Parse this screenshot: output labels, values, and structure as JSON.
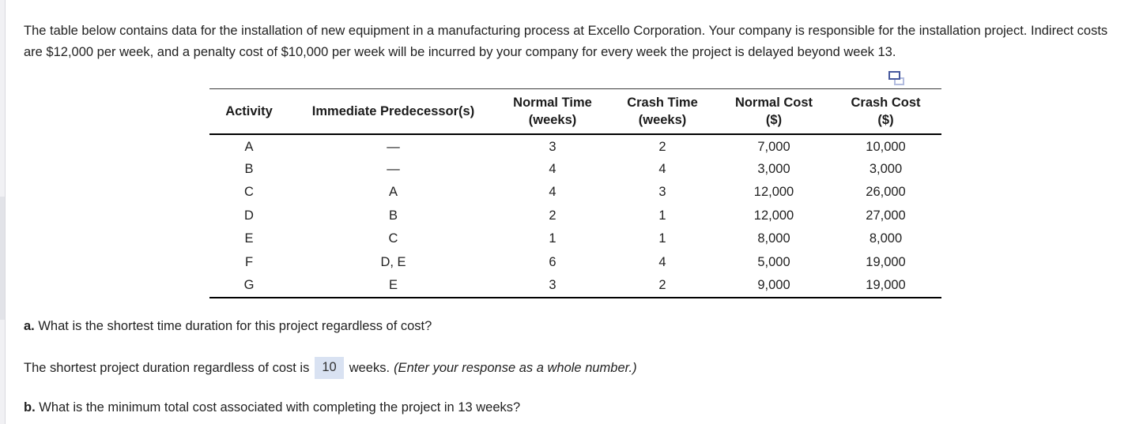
{
  "intro_text": "The table below contains data for the installation of new equipment in a manufacturing process at Excello Corporation. Your company is responsible for the installation project. Indirect costs are $12,000 per week, and a penalty cost of $10,000 per week will be incurred by your company for every week the project is delayed beyond week 13.",
  "icons": {
    "copy_icon_name": "copy-table-icon",
    "copy_icon_front_color": "#46589d",
    "copy_icon_back_color": "#b2bcdf"
  },
  "table": {
    "columns": [
      {
        "label": "Activity",
        "sub": ""
      },
      {
        "label": "Immediate Predecessor(s)",
        "sub": ""
      },
      {
        "label": "Normal Time",
        "sub": "(weeks)"
      },
      {
        "label": "Crash Time",
        "sub": "(weeks)"
      },
      {
        "label": "Normal Cost",
        "sub": "($)"
      },
      {
        "label": "Crash Cost",
        "sub": "($)"
      }
    ],
    "rows": [
      [
        "A",
        "—",
        "3",
        "2",
        "7,000",
        "10,000"
      ],
      [
        "B",
        "—",
        "4",
        "4",
        "3,000",
        "3,000"
      ],
      [
        "C",
        "A",
        "4",
        "3",
        "12,000",
        "26,000"
      ],
      [
        "D",
        "B",
        "2",
        "1",
        "12,000",
        "27,000"
      ],
      [
        "E",
        "C",
        "1",
        "1",
        "8,000",
        "8,000"
      ],
      [
        "F",
        "D, E",
        "6",
        "4",
        "5,000",
        "19,000"
      ],
      [
        "G",
        "E",
        "3",
        "2",
        "9,000",
        "19,000"
      ]
    ]
  },
  "question_a": {
    "prefix": "a.",
    "text": " What is the shortest time duration for this project regardless of cost?"
  },
  "answer_a": {
    "before": "The shortest project duration regardless of cost is",
    "value": "10",
    "after": "weeks.",
    "note": "(Enter your response as a whole number.)"
  },
  "question_b": {
    "prefix": "b.",
    "text": " What is the minimum total cost associated with completing the project in 13 weeks?"
  },
  "colors": {
    "answer_highlight": "#d9e2f2"
  }
}
